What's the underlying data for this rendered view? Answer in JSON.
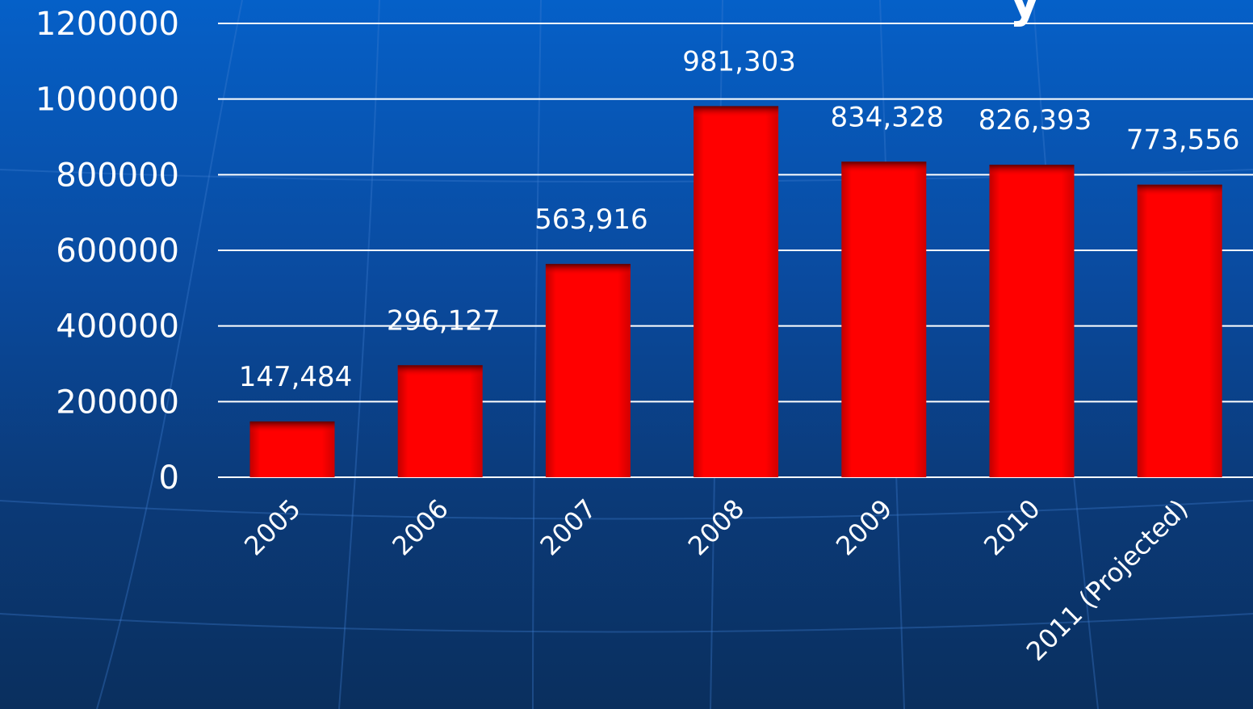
{
  "title_fragment": "y",
  "colors": {
    "bar": "#ff0000",
    "bar_shadow": "#8b0000",
    "grid": "#ffffff",
    "text": "#ffffff"
  },
  "chart_data": {
    "type": "bar",
    "categories": [
      "2005",
      "2006",
      "2007",
      "2008",
      "2009",
      "2010",
      "2011 (Projected)"
    ],
    "values": [
      147484,
      296127,
      563916,
      981303,
      834328,
      826393,
      773556
    ],
    "data_labels": [
      "147,484",
      "296,127",
      "563,916",
      "981,303",
      "834,328",
      "826,393",
      "773,556"
    ],
    "yticks": [
      "0",
      "200000",
      "400000",
      "600000",
      "800000",
      "1000000",
      "1200000"
    ],
    "ylim": [
      0,
      1200000
    ],
    "grid": true,
    "legend": "none"
  }
}
